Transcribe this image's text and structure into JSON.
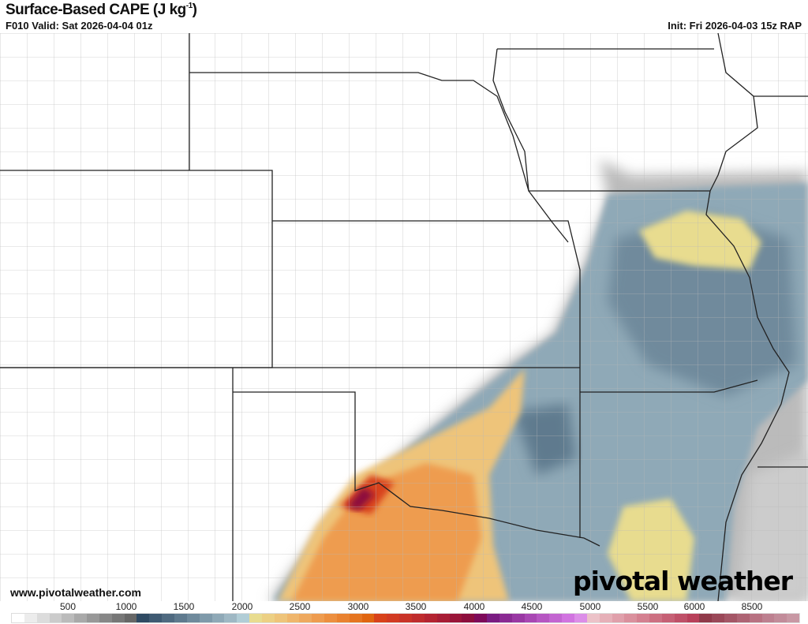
{
  "header": {
    "title": "Surface-Based CAPE (J kg",
    "title_sup": "-1",
    "title_close": ")",
    "valid": "F010 Valid: Sat 2026-04-04 01z",
    "init": "Init: Fri 2026-04-03 15z RAP"
  },
  "footer": {
    "site": "www.pivotalweather.com",
    "logo": "pivotal weather"
  },
  "colorbar": {
    "ticks": [
      "500",
      "1000",
      "1500",
      "2000",
      "2500",
      "3000",
      "3500",
      "4000",
      "4500",
      "5000",
      "5500",
      "6000",
      "8500"
    ],
    "colors": [
      "#ffffff",
      "#ececec",
      "#dcdcdc",
      "#cbcbcb",
      "#bbbbbb",
      "#a9a9a9",
      "#989898",
      "#878787",
      "#777777",
      "#676767",
      "#2f4a63",
      "#3f5a72",
      "#4f6a80",
      "#5f7a8e",
      "#6f8a9c",
      "#7f9aaa",
      "#8fa9b7",
      "#9fb8c4",
      "#b1cdd6",
      "#e8dc8f",
      "#ecd084",
      "#eec47a",
      "#efb66c",
      "#eea95f",
      "#ee9c4f",
      "#ec8f3f",
      "#e98230",
      "#e57520",
      "#e06510",
      "#d8421a",
      "#d23a22",
      "#c93328",
      "#bf2c2d",
      "#b42431",
      "#a81d35",
      "#9a1539",
      "#8d0e3d",
      "#7e0a5a",
      "#7a1c82",
      "#8a2a93",
      "#9938a3",
      "#a847b3",
      "#b656c2",
      "#c365d1",
      "#d174e0",
      "#dc8ee8",
      "#ecc2c8",
      "#e6b0b8",
      "#e0a0ab",
      "#da909d",
      "#d48090",
      "#cd7082",
      "#c66075",
      "#bf5068",
      "#b8405a",
      "#903a4a",
      "#9a4858",
      "#a45666",
      "#ae6474",
      "#b87282",
      "#bd8090",
      "#c28c9a",
      "#c898a4"
    ]
  },
  "legend_colors": {
    "low": "#5f7a8e",
    "mid": "#e8dc8f",
    "high": "#e57520",
    "extreme": "#a81d35"
  }
}
